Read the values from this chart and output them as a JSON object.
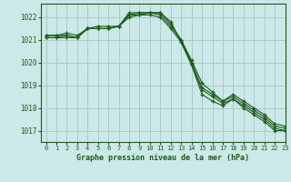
{
  "title": "Graphe pression niveau de la mer (hPa)",
  "bg_color": "#cce8e8",
  "grid_color": "#aacccc",
  "line_color": "#1a5c1a",
  "marker": "+",
  "xlim": [
    -0.5,
    23
  ],
  "ylim": [
    1016.5,
    1022.6
  ],
  "yticks": [
    1017,
    1018,
    1019,
    1020,
    1021,
    1022
  ],
  "xticks": [
    0,
    1,
    2,
    3,
    4,
    5,
    6,
    7,
    8,
    9,
    10,
    11,
    12,
    13,
    14,
    15,
    16,
    17,
    18,
    19,
    20,
    21,
    22,
    23
  ],
  "series": [
    [
      1021.1,
      1021.1,
      1021.1,
      1021.1,
      1021.5,
      1021.6,
      1021.6,
      1021.6,
      1022.1,
      1022.2,
      1022.2,
      1022.2,
      1021.8,
      1020.9,
      1019.9,
      1018.6,
      1018.3,
      1018.1,
      1018.4,
      1018.0,
      1017.7,
      1017.4,
      1017.0,
      1017.0
    ],
    [
      1021.1,
      1021.1,
      1021.2,
      1021.1,
      1021.5,
      1021.5,
      1021.5,
      1021.6,
      1022.2,
      1022.2,
      1022.2,
      1022.2,
      1021.7,
      1021.0,
      1020.0,
      1018.9,
      1018.6,
      1018.3,
      1018.5,
      1018.2,
      1017.9,
      1017.6,
      1017.2,
      1017.1
    ],
    [
      1021.2,
      1021.2,
      1021.3,
      1021.2,
      1021.5,
      1021.5,
      1021.5,
      1021.6,
      1022.1,
      1022.1,
      1022.2,
      1022.1,
      1021.6,
      1021.0,
      1020.1,
      1019.1,
      1018.7,
      1018.3,
      1018.6,
      1018.3,
      1018.0,
      1017.7,
      1017.3,
      1017.2
    ],
    [
      1021.2,
      1021.2,
      1021.2,
      1021.1,
      1021.5,
      1021.5,
      1021.5,
      1021.6,
      1022.0,
      1022.1,
      1022.1,
      1022.0,
      1021.5,
      1020.9,
      1019.9,
      1018.8,
      1018.5,
      1018.2,
      1018.4,
      1018.1,
      1017.8,
      1017.5,
      1017.1,
      1017.0
    ]
  ]
}
